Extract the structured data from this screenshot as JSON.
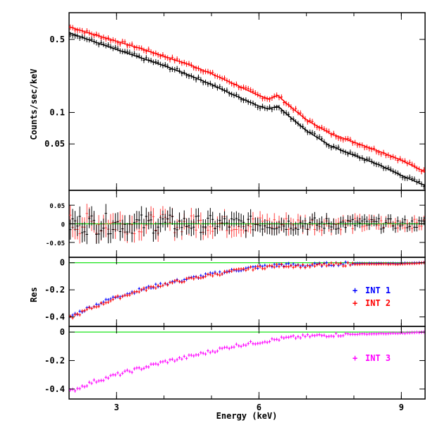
{
  "chart_data": [
    {
      "type": "scatter",
      "panel": "spectrum",
      "ylabel": "Counts/sec/keV",
      "y_scale": "log",
      "ylim": [
        0.018,
        0.9
      ],
      "xlim": [
        2.0,
        9.5
      ],
      "y_ticks": [
        {
          "v": 0.5,
          "label": "0.5"
        },
        {
          "v": 0.1,
          "label": "0.1"
        },
        {
          "v": 0.05,
          "label": "0.05"
        }
      ],
      "grid": false,
      "series": [
        {
          "color": "#ff0000",
          "values": [
            [
              2.0,
              0.66
            ],
            [
              2.5,
              0.56
            ],
            [
              3.0,
              0.48
            ],
            [
              3.5,
              0.41
            ],
            [
              4.0,
              0.345
            ],
            [
              4.5,
              0.29
            ],
            [
              5.0,
              0.235
            ],
            [
              5.5,
              0.185
            ],
            [
              6.0,
              0.145
            ],
            [
              6.2,
              0.135
            ],
            [
              6.4,
              0.145
            ],
            [
              6.6,
              0.12
            ],
            [
              7.0,
              0.085
            ],
            [
              7.5,
              0.063
            ],
            [
              8.0,
              0.052
            ],
            [
              8.5,
              0.043
            ],
            [
              9.0,
              0.035
            ],
            [
              9.5,
              0.027
            ]
          ]
        },
        {
          "color": "#000000",
          "values": [
            [
              2.0,
              0.58
            ],
            [
              2.5,
              0.48
            ],
            [
              3.0,
              0.4
            ],
            [
              3.5,
              0.335
            ],
            [
              4.0,
              0.28
            ],
            [
              4.5,
              0.23
            ],
            [
              5.0,
              0.185
            ],
            [
              5.5,
              0.145
            ],
            [
              6.0,
              0.115
            ],
            [
              6.2,
              0.108
            ],
            [
              6.4,
              0.115
            ],
            [
              6.6,
              0.095
            ],
            [
              7.0,
              0.067
            ],
            [
              7.5,
              0.048
            ],
            [
              8.0,
              0.039
            ],
            [
              8.5,
              0.032
            ],
            [
              9.0,
              0.025
            ],
            [
              9.5,
              0.02
            ]
          ]
        }
      ]
    },
    {
      "type": "scatter",
      "panel": "residuals-fit",
      "ylim": [
        -0.09,
        0.09
      ],
      "xlim": [
        2.0,
        9.5
      ],
      "y_ticks": [
        {
          "v": 0.05,
          "label": "0.05"
        },
        {
          "v": 0.0,
          "label": "0"
        },
        {
          "v": -0.05,
          "label": "-0.05"
        }
      ],
      "reference_line": {
        "y": 0,
        "color": "#00e000"
      },
      "series": [
        {
          "color": "#ff4040",
          "note_amplitude": 0.03
        },
        {
          "color": "#000000",
          "note_amplitude": 0.03
        }
      ]
    },
    {
      "type": "scatter",
      "panel": "residuals-int12",
      "ylabel": "Res",
      "ylim": [
        -0.47,
        0.04
      ],
      "xlim": [
        2.0,
        9.5
      ],
      "y_ticks": [
        {
          "v": 0.0,
          "label": "0"
        },
        {
          "v": -0.2,
          "label": "-0.2"
        },
        {
          "v": -0.4,
          "label": "-0.4"
        }
      ],
      "reference_line": {
        "y": 0,
        "color": "#00e000"
      },
      "legend": "right",
      "series": [
        {
          "name": "INT 1",
          "color": "#0000ff",
          "values": [
            [
              2.0,
              -0.4
            ],
            [
              2.5,
              -0.32
            ],
            [
              3.0,
              -0.25
            ],
            [
              3.5,
              -0.2
            ],
            [
              4.0,
              -0.155
            ],
            [
              4.5,
              -0.12
            ],
            [
              5.0,
              -0.085
            ],
            [
              5.5,
              -0.055
            ],
            [
              6.0,
              -0.03
            ],
            [
              6.5,
              -0.015
            ],
            [
              7.0,
              -0.02
            ],
            [
              7.5,
              -0.01
            ],
            [
              8.0,
              -0.005
            ],
            [
              9.0,
              -0.005
            ],
            [
              9.5,
              0.0
            ]
          ]
        },
        {
          "name": "INT 2",
          "color": "#ff0000",
          "values": [
            [
              2.0,
              -0.41
            ],
            [
              2.5,
              -0.33
            ],
            [
              3.0,
              -0.26
            ],
            [
              3.5,
              -0.205
            ],
            [
              4.0,
              -0.16
            ],
            [
              4.5,
              -0.125
            ],
            [
              5.0,
              -0.09
            ],
            [
              5.5,
              -0.06
            ],
            [
              6.0,
              -0.035
            ],
            [
              6.5,
              -0.02
            ],
            [
              7.0,
              -0.025
            ],
            [
              7.5,
              -0.015
            ],
            [
              8.0,
              -0.01
            ],
            [
              9.0,
              -0.01
            ],
            [
              9.5,
              0.0
            ]
          ]
        }
      ]
    },
    {
      "type": "scatter",
      "panel": "residuals-int3",
      "ylim": [
        -0.47,
        0.04
      ],
      "xlim": [
        2.0,
        9.5
      ],
      "xlabel": "Energy (keV)",
      "x_ticks": [
        {
          "v": 3,
          "label": "3"
        },
        {
          "v": 6,
          "label": "6"
        },
        {
          "v": 9,
          "label": "9"
        }
      ],
      "y_ticks": [
        {
          "v": 0.0,
          "label": "0"
        },
        {
          "v": -0.2,
          "label": "-0.2"
        },
        {
          "v": -0.4,
          "label": "-0.4"
        }
      ],
      "reference_line": {
        "y": 0,
        "color": "#00e000"
      },
      "legend": "right",
      "series": [
        {
          "name": "INT 3",
          "color": "#ff00ff",
          "values": [
            [
              2.0,
              -0.42
            ],
            [
              2.5,
              -0.35
            ],
            [
              3.0,
              -0.3
            ],
            [
              3.5,
              -0.255
            ],
            [
              4.0,
              -0.21
            ],
            [
              4.5,
              -0.175
            ],
            [
              5.0,
              -0.135
            ],
            [
              5.5,
              -0.095
            ],
            [
              6.0,
              -0.07
            ],
            [
              6.5,
              -0.045
            ],
            [
              7.0,
              -0.03
            ],
            [
              7.5,
              -0.02
            ],
            [
              8.0,
              -0.015
            ],
            [
              9.0,
              -0.008
            ],
            [
              9.5,
              0.0
            ]
          ]
        }
      ]
    }
  ]
}
